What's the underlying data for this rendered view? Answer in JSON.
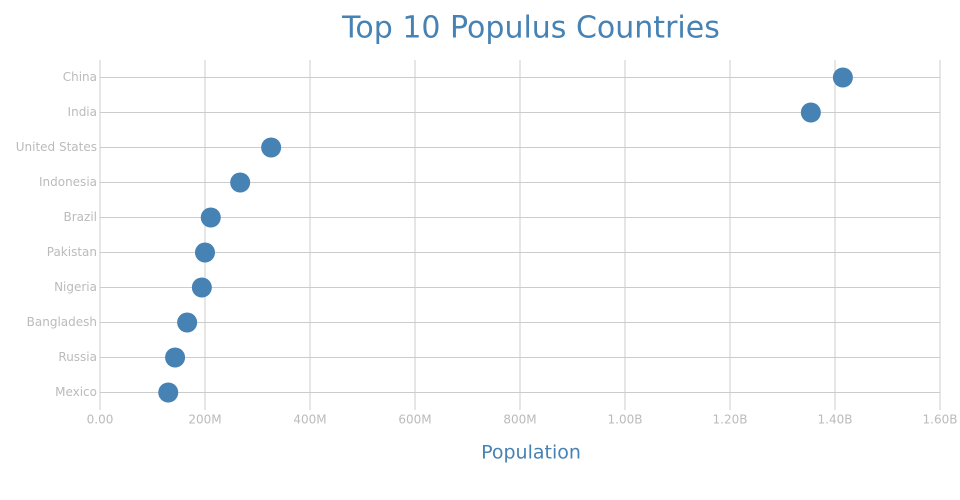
{
  "chart_data": {
    "type": "dot",
    "title": "Top 10 Populus Countries",
    "x_label": "Population",
    "categories": [
      "China",
      "India",
      "United States",
      "Indonesia",
      "Brazil",
      "Pakistan",
      "Nigeria",
      "Bangladesh",
      "Russia",
      "Mexico"
    ],
    "values": [
      1415000000,
      1354000000,
      326000000,
      267000000,
      211000000,
      200000000,
      194000000,
      166000000,
      143000000,
      130000000
    ],
    "color": "#4682b4",
    "xlim": [
      0,
      1600000000
    ],
    "xticks": [
      {
        "value": 0,
        "label": "0.00"
      },
      {
        "value": 200000000,
        "label": "200M"
      },
      {
        "value": 400000000,
        "label": "400M"
      },
      {
        "value": 600000000,
        "label": "600M"
      },
      {
        "value": 800000000,
        "label": "800M"
      },
      {
        "value": 1000000000,
        "label": "1.00B"
      },
      {
        "value": 1200000000,
        "label": "1.20B"
      },
      {
        "value": 1400000000,
        "label": "1.40B"
      },
      {
        "value": 1600000000,
        "label": "1.60B"
      }
    ],
    "grid": true
  }
}
